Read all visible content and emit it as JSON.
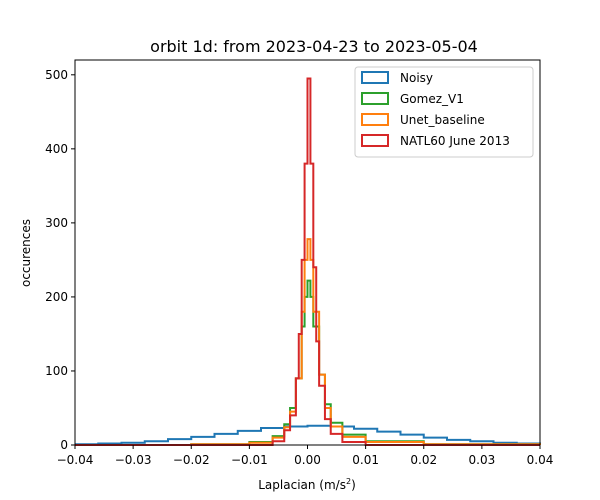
{
  "chart_data": {
    "type": "line",
    "style": "step-histogram",
    "title": "orbit 1d: from 2023-04-23 to 2023-05-04",
    "xlabel": "Laplacian (m/s",
    "xlabel_superscript": "2",
    "xlabel_suffix": ")",
    "ylabel": "occurences",
    "xlim": [
      -0.04,
      0.04
    ],
    "ylim": [
      0,
      520
    ],
    "xticks": [
      -0.04,
      -0.03,
      -0.02,
      -0.01,
      0.0,
      0.01,
      0.02,
      0.03,
      0.04
    ],
    "xtick_labels": [
      "−0.04",
      "−0.03",
      "−0.02",
      "−0.01",
      "0.00",
      "0.01",
      "0.02",
      "0.03",
      "0.04"
    ],
    "yticks": [
      0,
      100,
      200,
      300,
      400,
      500
    ],
    "ytick_labels": [
      "0",
      "100",
      "200",
      "300",
      "400",
      "500"
    ],
    "grid": false,
    "legend_position": "top-right",
    "series": [
      {
        "name": "Noisy",
        "color": "#1f77b4",
        "x": [
          -0.04,
          -0.036,
          -0.032,
          -0.028,
          -0.024,
          -0.02,
          -0.016,
          -0.012,
          -0.008,
          -0.004,
          0.0,
          0.004,
          0.008,
          0.012,
          0.016,
          0.02,
          0.024,
          0.028,
          0.032,
          0.036,
          0.04
        ],
        "y": [
          1,
          2,
          3,
          5,
          8,
          11,
          15,
          19,
          23,
          25,
          26,
          25,
          22,
          18,
          14,
          10,
          7,
          5,
          3,
          2,
          1
        ]
      },
      {
        "name": "Gomez_V1",
        "color": "#2ca02c",
        "x": [
          -0.04,
          -0.02,
          -0.01,
          -0.006,
          -0.004,
          -0.003,
          -0.002,
          -0.001,
          -0.0005,
          0.0,
          0.0005,
          0.001,
          0.002,
          0.003,
          0.004,
          0.006,
          0.01,
          0.02,
          0.04
        ],
        "y": [
          0,
          1,
          4,
          12,
          28,
          50,
          90,
          160,
          200,
          222,
          200,
          160,
          95,
          55,
          30,
          14,
          5,
          1,
          0
        ]
      },
      {
        "name": "Unet_baseline",
        "color": "#ff7f0e",
        "x": [
          -0.04,
          -0.02,
          -0.01,
          -0.006,
          -0.004,
          -0.003,
          -0.002,
          -0.001,
          -0.0005,
          0.0,
          0.0005,
          0.001,
          0.002,
          0.003,
          0.004,
          0.006,
          0.01,
          0.02,
          0.04
        ],
        "y": [
          0,
          1,
          3,
          10,
          24,
          45,
          90,
          180,
          250,
          278,
          250,
          180,
          95,
          50,
          25,
          11,
          4,
          1,
          0
        ]
      },
      {
        "name": "NATL60 June 2013",
        "color": "#d62728",
        "x": [
          -0.04,
          -0.01,
          -0.006,
          -0.004,
          -0.003,
          -0.002,
          -0.0015,
          -0.001,
          -0.0005,
          0.0,
          0.0005,
          0.001,
          0.0015,
          0.002,
          0.003,
          0.004,
          0.006,
          0.01,
          0.04
        ],
        "y": [
          0,
          0,
          5,
          20,
          40,
          90,
          150,
          250,
          380,
          495,
          380,
          240,
          140,
          80,
          35,
          15,
          4,
          0,
          0
        ]
      }
    ]
  }
}
